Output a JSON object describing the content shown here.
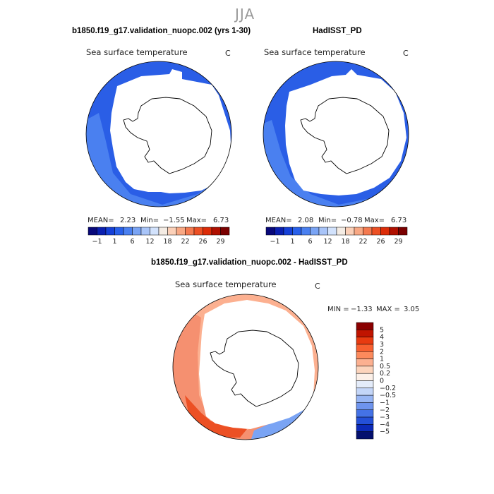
{
  "season": "JJA",
  "panels": {
    "left": {
      "title": "b1850.f19_g17.validation_nuopc.002 (yrs 1-30)",
      "variable": "Sea surface temperature",
      "units": "C",
      "stats": {
        "mean_label": "MEAN=",
        "mean": "2.23",
        "min_label": "Min=",
        "min": "−1.55",
        "max_label": "Max=",
        "max": "6.73"
      }
    },
    "right": {
      "title": "HadISST_PD",
      "variable": "Sea surface temperature",
      "units": "C",
      "stats": {
        "mean_label": "MEAN=",
        "mean": "2.08",
        "min_label": "Min=",
        "min": "−0.78",
        "max_label": "Max=",
        "max": "6.73"
      }
    },
    "diff": {
      "title": "b1850.f19_g17.validation_nuopc.002 - HadISST_PD",
      "variable": "Sea surface temperature",
      "units": "C",
      "stats": {
        "min_label": "MIN =",
        "min": "−1.33",
        "max_label": "MAX =",
        "max": "3.05"
      }
    }
  },
  "colorbar_abs": {
    "labels": [
      "−1",
      "1",
      "6",
      "12",
      "18",
      "22",
      "26",
      "29"
    ],
    "colors": [
      "#08087a",
      "#0a1fb0",
      "#1540d8",
      "#2860ea",
      "#4a80f0",
      "#7aa4f4",
      "#a8c4f8",
      "#d2e2fc",
      "#f4ece4",
      "#fbd0b8",
      "#f8a884",
      "#f47a50",
      "#ec5024",
      "#dc2c08",
      "#b01000",
      "#7a0000"
    ]
  },
  "colorbar_diff": {
    "labels": [
      "5",
      "4",
      "3",
      "2",
      "1",
      "0.5",
      "0.2",
      "0",
      "−0.2",
      "−0.5",
      "−1",
      "−2",
      "−3",
      "−4",
      "−5"
    ],
    "colors": [
      "#8a0000",
      "#c01400",
      "#e83a10",
      "#f86030",
      "#fc8a5c",
      "#fcb090",
      "#fcd4bc",
      "#fcf0e8",
      "#e4ecfa",
      "#c4d6f8",
      "#98b6f4",
      "#6e94ee",
      "#4472e6",
      "#2450d8",
      "#0c2ab8",
      "#04106e"
    ]
  },
  "colors": {
    "ocean_abs": "#2a5ee6",
    "ocean_abs_light": "#4a80f0",
    "ocean_abs_dark": "#1c44c8",
    "diff_warm": "#f59070",
    "diff_warm_strong": "#ec5024",
    "diff_cool": "#7aa4f4"
  }
}
